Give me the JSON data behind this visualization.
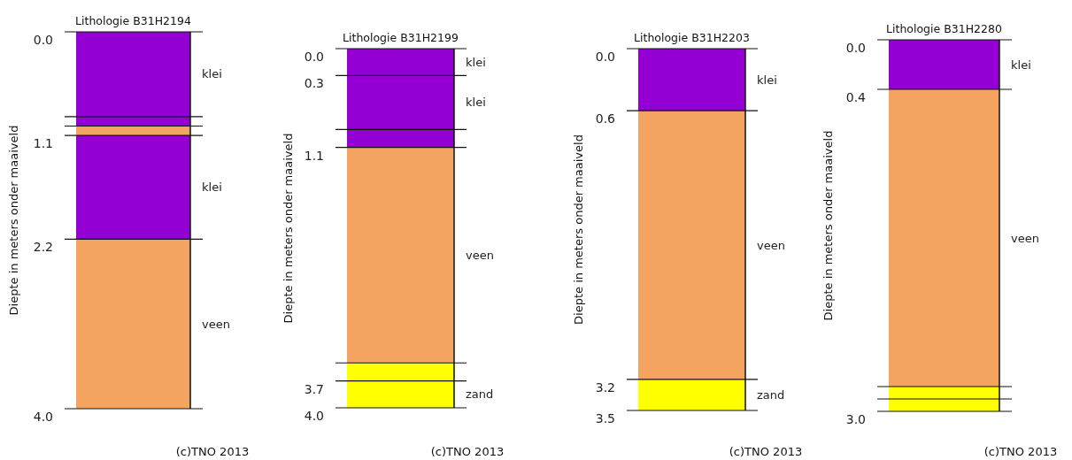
{
  "chart_data": [
    {
      "type": "bar",
      "title": "Lithologie B31H2194",
      "grid": "y",
      "ylabel": "Diepte in meters onder maaiveld",
      "annotations": [
        "(c)TNO 2013"
      ],
      "categories": [
        null
      ],
      "stacked": true,
      "ylim": [
        4.0,
        0
      ],
      "yticks": [
        {
          "value": 0,
          "label": "0.0"
        },
        {
          "value": 0.9,
          "label": null
        },
        {
          "value": 1.0,
          "label": null
        },
        {
          "value": 1.1,
          "label": "1.1"
        },
        {
          "value": 2.2,
          "label": "2.2"
        },
        {
          "value": 4.0,
          "label": "4.0"
        }
      ],
      "series": [
        {
          "name": "klei",
          "color": "#9400d3",
          "values": [
            0.9
          ]
        },
        {
          "color": "#9400d3",
          "values": [
            0.1
          ]
        },
        {
          "color": "#f4a460",
          "values": [
            0.1
          ]
        },
        {
          "name": "klei",
          "color": "#9400d3",
          "values": [
            1.1
          ]
        },
        {
          "name": "veen",
          "color": "#f4a460",
          "values": [
            1.8
          ]
        }
      ]
    },
    {
      "type": "bar",
      "title": "Lithologie B31H2199",
      "grid": "y",
      "ylabel": "Diepte in meters onder maaiveld",
      "annotations": [
        "(c)TNO 2013"
      ],
      "categories": [
        null
      ],
      "stacked": true,
      "ylim": [
        4.0,
        0
      ],
      "yticks": [
        {
          "value": 0,
          "label": "0.0"
        },
        {
          "value": 0.3,
          "label": "0.3"
        },
        {
          "value": 0.9,
          "label": null
        },
        {
          "value": 1.1,
          "label": "1.1"
        },
        {
          "value": 3.5,
          "label": null
        },
        {
          "value": 3.7,
          "label": "3.7"
        },
        {
          "value": 4.0,
          "label": "4.0"
        }
      ],
      "series": [
        {
          "name": "klei",
          "color": "#9400d3",
          "values": [
            0.3
          ]
        },
        {
          "name": "klei",
          "color": "#9400d3",
          "values": [
            0.6
          ]
        },
        {
          "color": "#9400d3",
          "values": [
            0.2
          ]
        },
        {
          "name": "veen",
          "color": "#f4a460",
          "values": [
            2.4
          ]
        },
        {
          "color": "#ffff00",
          "values": [
            0.2
          ]
        },
        {
          "name": "zand",
          "color": "#ffff00",
          "values": [
            0.3
          ]
        }
      ]
    },
    {
      "type": "bar",
      "title": "Lithologie B31H2203",
      "grid": "y",
      "ylabel": "Diepte in meters onder maaiveld",
      "annotations": [
        "(c)TNO 2013"
      ],
      "categories": [
        null
      ],
      "stacked": true,
      "ylim": [
        3.5,
        0
      ],
      "yticks": [
        {
          "value": 0,
          "label": "0.0"
        },
        {
          "value": 0.6,
          "label": "0.6"
        },
        {
          "value": 3.2,
          "label": "3.2"
        },
        {
          "value": 3.5,
          "label": "3.5"
        }
      ],
      "series": [
        {
          "name": "klei",
          "color": "#9400d3",
          "values": [
            0.6
          ]
        },
        {
          "name": "veen",
          "color": "#f4a460",
          "values": [
            2.6
          ]
        },
        {
          "name": "zand",
          "color": "#ffff00",
          "values": [
            0.3
          ]
        }
      ]
    },
    {
      "type": "bar",
      "title": "Lithologie B31H2280",
      "grid": "y",
      "ylabel": "Diepte in meters onder maaiveld",
      "annotations": [
        "(c)TNO 2013"
      ],
      "categories": [
        null
      ],
      "stacked": true,
      "ylim": [
        3.0,
        0
      ],
      "yticks": [
        {
          "value": 0,
          "label": "0.0"
        },
        {
          "value": 0.4,
          "label": "0.4"
        },
        {
          "value": 2.8,
          "label": null
        },
        {
          "value": 2.9,
          "label": null
        },
        {
          "value": 3.0,
          "label": "3.0"
        }
      ],
      "series": [
        {
          "name": "klei",
          "color": "#9400d3",
          "values": [
            0.4
          ]
        },
        {
          "name": "veen",
          "color": "#f4a460",
          "values": [
            2.4
          ]
        },
        {
          "color": "#ffff00",
          "values": [
            0.1
          ]
        },
        {
          "color": "#ffff00",
          "values": [
            0.1
          ]
        }
      ]
    }
  ]
}
